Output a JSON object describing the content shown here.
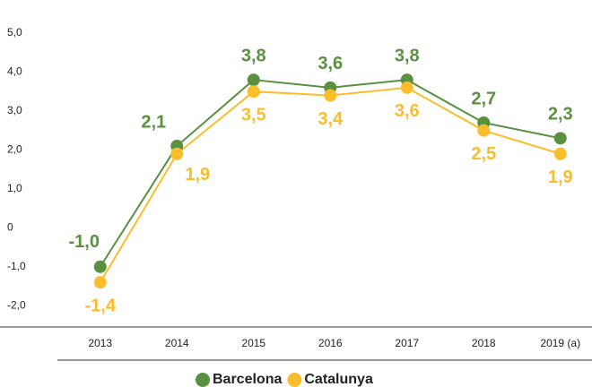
{
  "chart_data": {
    "type": "line",
    "categories": [
      "2013",
      "2014",
      "2015",
      "2016",
      "2017",
      "2018",
      "2019 (a)"
    ],
    "series": [
      {
        "name": "Barcelona",
        "color": "#5a9140",
        "values": [
          -1.0,
          2.1,
          3.8,
          3.6,
          3.8,
          2.7,
          2.3
        ],
        "value_labels": [
          "-1,0",
          "2,1",
          "3,8",
          "3,6",
          "3,8",
          "2,7",
          "2,3"
        ]
      },
      {
        "name": "Catalunya",
        "color": "#fbbd2b",
        "values": [
          -1.4,
          1.9,
          3.5,
          3.4,
          3.6,
          2.5,
          1.9
        ],
        "value_labels": [
          "-1,4",
          "1,9",
          "3,5",
          "3,4",
          "3,6",
          "2,5",
          "1,9"
        ]
      }
    ],
    "ylim": [
      -2.5,
      5
    ],
    "yticks": [
      {
        "value": -2,
        "label": "-2,0"
      },
      {
        "value": -1,
        "label": "-1,0"
      },
      0,
      {
        "value": 1,
        "label": "1,0"
      },
      {
        "value": 2,
        "label": "2,0"
      },
      {
        "value": 3,
        "label": "3,0"
      },
      {
        "value": 4,
        "label": "4,0"
      },
      {
        "value": 5,
        "label": "5,0"
      }
    ],
    "grid": false,
    "legend": "bottom"
  }
}
